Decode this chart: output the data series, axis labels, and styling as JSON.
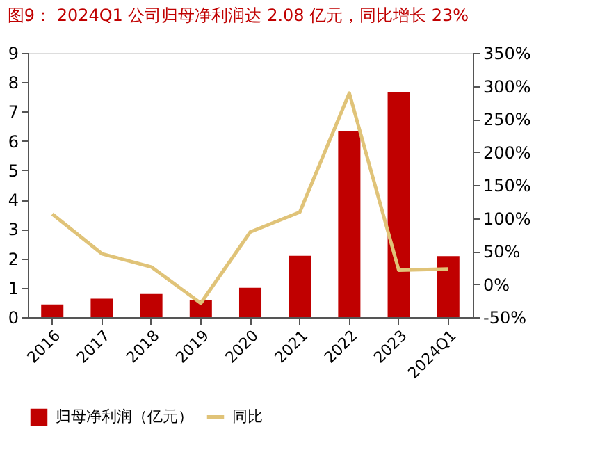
{
  "chart_data": {
    "type": "bar",
    "title": "图9： 2024Q1 公司归母净利润达 2.08 亿元，同比增长 23%",
    "categories": [
      "2016",
      "2017",
      "2018",
      "2019",
      "2020",
      "2021",
      "2022",
      "2023",
      "2024Q1"
    ],
    "series": [
      {
        "name": "归母净利润（亿元）",
        "type": "bar",
        "color": "#c00000",
        "values": [
          0.43,
          0.63,
          0.79,
          0.57,
          1.0,
          2.09,
          6.33,
          7.67,
          2.08
        ]
      },
      {
        "name": "同比",
        "type": "line",
        "axis": "y2",
        "color": "#e0c378",
        "values": [
          106,
          46,
          26,
          -29,
          79,
          109,
          289,
          21,
          23
        ]
      }
    ],
    "ylim": [
      0,
      9
    ],
    "yticks": [
      0,
      1,
      2,
      3,
      4,
      5,
      6,
      7,
      8,
      9
    ],
    "y2lim": [
      -50,
      350
    ],
    "y2ticks": [
      {
        "value": -50,
        "label": "-50%"
      },
      {
        "value": 0,
        "label": "0%"
      },
      {
        "value": 50,
        "label": "50%"
      },
      {
        "value": 100,
        "label": "100%"
      },
      {
        "value": 150,
        "label": "150%"
      },
      {
        "value": 200,
        "label": "200%"
      },
      {
        "value": 250,
        "label": "250%"
      },
      {
        "value": 300,
        "label": "300%"
      },
      {
        "value": 350,
        "label": "350%"
      }
    ],
    "legend": "bottom",
    "grid": false,
    "marker": "none",
    "line_style": "solid"
  }
}
